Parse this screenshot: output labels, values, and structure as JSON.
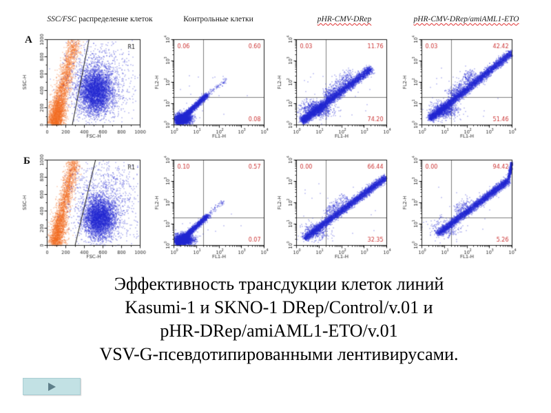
{
  "slide": {
    "column_headers": [
      {
        "em": "SSC/FSC",
        "rest": " распределение клеток",
        "misspell_underline": false
      },
      {
        "em": "",
        "rest": "Контрольные клетки",
        "misspell_underline": false
      },
      {
        "em": "pHR-CMV-DRep",
        "rest": "",
        "misspell_underline": true
      },
      {
        "em": "pHR-CMV-DRep/amiAML1-ETO",
        "rest": "",
        "misspell_underline": true
      }
    ],
    "row_labels": [
      "А",
      "Б"
    ],
    "caption_lines": [
      "Эффективность трансдукции клеток линий",
      "Kasumi-1 и SKNO-1 DRep/Control/v.01 и",
      "pHR-DRep/amiAML1-ETO/v.01",
      "VSV-G-псевдотипированными лентивирусами."
    ],
    "nav_button": {
      "action": "next-slide",
      "fill": "#c2e1e4",
      "arrow_color": "#5e7f8a"
    },
    "colors": {
      "points_blue": "#2428d2",
      "points_orange": "#f26c22",
      "quadrant_stat_red": "#cc3333",
      "quadrant_line_gray": "#7d7d7d",
      "axis_black": "#1a1a1a"
    }
  },
  "chart_data": [
    {
      "id": "A1",
      "row": "А",
      "column_title": "SSC/FSC распределение клеток",
      "type": "scatter",
      "scale": "linear",
      "xlabel": "FSC-H",
      "ylabel": "SSC-H",
      "xlim": [
        0,
        1000
      ],
      "ylim": [
        0,
        1000
      ],
      "ticks": [
        0,
        200,
        400,
        600,
        800,
        1000
      ],
      "gate": {
        "label": "R1",
        "line": [
          [
            270,
            0
          ],
          [
            450,
            1000
          ]
        ]
      },
      "clusters": [
        {
          "kind": "streak",
          "x0": 70,
          "y0": 20,
          "x1": 300,
          "y1": 1000,
          "spread": 38,
          "n": 2600,
          "bias": 1.6,
          "color": "#f26c22"
        },
        {
          "kind": "blob",
          "cx": 115,
          "cy": 150,
          "sx": 45,
          "sy": 100,
          "n": 700,
          "color": "#f26c22"
        },
        {
          "kind": "blob",
          "cx": 520,
          "cy": 390,
          "sx": 90,
          "sy": 130,
          "n": 3800,
          "color": "#2428d2"
        },
        {
          "kind": "blob",
          "cx": 545,
          "cy": 520,
          "sx": 165,
          "sy": 225,
          "n": 900,
          "color": "#2428d2"
        },
        {
          "kind": "uniform",
          "x0": 300,
          "y0": 60,
          "x1": 950,
          "y1": 980,
          "n": 130,
          "color": "#2428d2"
        }
      ]
    },
    {
      "id": "A2",
      "row": "А",
      "column_title": "Контрольные клетки",
      "type": "scatter",
      "scale": "log",
      "xlabel": "FL1-H",
      "ylabel": "FL2-H",
      "decades": [
        0,
        1,
        2,
        3,
        4
      ],
      "quadrant": {
        "x": 1.3,
        "y": 1.3,
        "stats": {
          "upper_left": "0.06",
          "upper_right": "0.60",
          "lower_right": "0.08"
        }
      },
      "clusters": [
        {
          "kind": "blob",
          "cx": 0.38,
          "cy": 0.3,
          "sx": 0.2,
          "sy": 0.13,
          "n": 2000,
          "color": "#2428d2"
        },
        {
          "kind": "streak",
          "x0": 0.15,
          "y0": 0.12,
          "x1": 1.45,
          "y1": 1.42,
          "spread": 0.06,
          "n": 2200,
          "bias": 1.5,
          "color": "#2428d2"
        },
        {
          "kind": "streak",
          "x0": 1.45,
          "y0": 1.42,
          "x1": 2.35,
          "y1": 2.15,
          "spread": 0.05,
          "n": 90,
          "bias": 1.2,
          "color": "#2428d2"
        },
        {
          "kind": "uniform",
          "x0": 0.2,
          "y0": 0.2,
          "x1": 3.3,
          "y1": 2.5,
          "n": 14,
          "color": "#2428d2"
        }
      ]
    },
    {
      "id": "A3",
      "row": "А",
      "column_title": "pHR-CMV-DRep",
      "type": "scatter",
      "scale": "log",
      "xlabel": "FL1-H",
      "ylabel": "FL2-H",
      "decades": [
        0,
        1,
        2,
        3,
        4
      ],
      "quadrant": {
        "x": 1.3,
        "y": 1.3,
        "stats": {
          "upper_left": "0.03",
          "upper_right": "11.76",
          "lower_right": "74.20"
        }
      },
      "clusters": [
        {
          "kind": "streak",
          "x0": 0.25,
          "y0": 0.2,
          "x1": 3.3,
          "y1": 2.65,
          "spread": 0.09,
          "n": 4200,
          "bias": 1.25,
          "color": "#2428d2"
        },
        {
          "kind": "blob",
          "cx": 0.9,
          "cy": 0.75,
          "sx": 0.35,
          "sy": 0.2,
          "n": 900,
          "color": "#2428d2"
        },
        {
          "kind": "streak",
          "x0": 1.35,
          "y0": 1.35,
          "x1": 2.4,
          "y1": 2.45,
          "spread": 0.16,
          "n": 420,
          "bias": 1.4,
          "color": "#2428d2"
        },
        {
          "kind": "uniform",
          "x0": 0.2,
          "y0": 0.2,
          "x1": 3.3,
          "y1": 2.8,
          "n": 25,
          "color": "#2428d2"
        }
      ]
    },
    {
      "id": "A4",
      "row": "А",
      "column_title": "pHR-CMV-DRep/amiAML1-ETO",
      "type": "scatter",
      "scale": "log",
      "xlabel": "FL1-H",
      "ylabel": "FL2-H",
      "decades": [
        0,
        1,
        2,
        3,
        4
      ],
      "quadrant": {
        "x": 1.3,
        "y": 1.3,
        "stats": {
          "upper_left": "0.03",
          "upper_right": "42.42",
          "lower_right": "51.46"
        }
      },
      "clusters": [
        {
          "kind": "streak",
          "x0": 0.35,
          "y0": 0.3,
          "x1": 3.98,
          "y1": 3.4,
          "spread": 0.085,
          "n": 4600,
          "bias": 1.15,
          "color": "#2428d2"
        },
        {
          "kind": "blob",
          "cx": 0.95,
          "cy": 0.7,
          "sx": 0.3,
          "sy": 0.18,
          "n": 700,
          "color": "#2428d2"
        },
        {
          "kind": "streak",
          "x0": 1.3,
          "y0": 1.4,
          "x1": 2.3,
          "y1": 2.5,
          "spread": 0.15,
          "n": 380,
          "bias": 1.4,
          "color": "#2428d2"
        },
        {
          "kind": "uniform",
          "x0": 0.3,
          "y0": 0.3,
          "x1": 3.6,
          "y1": 3.0,
          "n": 20,
          "color": "#2428d2"
        }
      ]
    },
    {
      "id": "B1",
      "row": "Б",
      "column_title": "SSC/FSC распределение клеток",
      "type": "scatter",
      "scale": "linear",
      "xlabel": "FSC-H",
      "ylabel": "SSC-H",
      "xlim": [
        0,
        1000
      ],
      "ylim": [
        0,
        1000
      ],
      "ticks": [
        0,
        200,
        400,
        600,
        800,
        1000
      ],
      "gate": {
        "label": "R1",
        "line": [
          [
            300,
            0
          ],
          [
            520,
            1000
          ]
        ]
      },
      "clusters": [
        {
          "kind": "streak",
          "x0": 80,
          "y0": 20,
          "x1": 290,
          "y1": 1000,
          "spread": 35,
          "n": 2400,
          "bias": 1.3,
          "color": "#f26c22"
        },
        {
          "kind": "blob",
          "cx": 125,
          "cy": 170,
          "sx": 48,
          "sy": 110,
          "n": 520,
          "color": "#f26c22"
        },
        {
          "kind": "blob",
          "cx": 560,
          "cy": 320,
          "sx": 85,
          "sy": 115,
          "n": 3600,
          "color": "#2428d2"
        },
        {
          "kind": "blob",
          "cx": 590,
          "cy": 520,
          "sx": 160,
          "sy": 230,
          "n": 1000,
          "color": "#2428d2"
        },
        {
          "kind": "uniform",
          "x0": 320,
          "y0": 60,
          "x1": 980,
          "y1": 990,
          "n": 140,
          "color": "#2428d2"
        }
      ]
    },
    {
      "id": "B2",
      "row": "Б",
      "column_title": "Контрольные клетки",
      "type": "scatter",
      "scale": "log",
      "xlabel": "FL1-H",
      "ylabel": "FL2-H",
      "decades": [
        0,
        1,
        2,
        3,
        4
      ],
      "quadrant": {
        "x": 1.3,
        "y": 1.3,
        "stats": {
          "upper_left": "0.10",
          "upper_right": "0.57",
          "lower_right": "0.07"
        }
      },
      "clusters": [
        {
          "kind": "blob",
          "cx": 0.4,
          "cy": 0.28,
          "sx": 0.22,
          "sy": 0.13,
          "n": 2200,
          "color": "#2428d2"
        },
        {
          "kind": "streak",
          "x0": 0.15,
          "y0": 0.1,
          "x1": 1.5,
          "y1": 1.42,
          "spread": 0.06,
          "n": 2300,
          "bias": 1.5,
          "color": "#2428d2"
        },
        {
          "kind": "streak",
          "x0": 1.5,
          "y0": 1.42,
          "x1": 2.2,
          "y1": 2.1,
          "spread": 0.05,
          "n": 70,
          "bias": 1.2,
          "color": "#2428d2"
        },
        {
          "kind": "uniform",
          "x0": 0.2,
          "y0": 0.2,
          "x1": 3.0,
          "y1": 2.3,
          "n": 10,
          "color": "#2428d2"
        }
      ]
    },
    {
      "id": "B3",
      "row": "Б",
      "column_title": "pHR-CMV-DRep",
      "type": "scatter",
      "scale": "log",
      "xlabel": "FL1-H",
      "ylabel": "FL2-H",
      "decades": [
        0,
        1,
        2,
        3,
        4
      ],
      "quadrant": {
        "x": 1.3,
        "y": 1.3,
        "stats": {
          "upper_left": "0.00",
          "upper_right": "66.44",
          "lower_right": "32.35"
        }
      },
      "clusters": [
        {
          "kind": "streak",
          "x0": 0.35,
          "y0": 0.35,
          "x1": 3.95,
          "y1": 3.2,
          "spread": 0.08,
          "n": 4300,
          "bias": 1.0,
          "color": "#2428d2"
        },
        {
          "kind": "blob",
          "cx": 0.8,
          "cy": 0.65,
          "sx": 0.3,
          "sy": 0.2,
          "n": 350,
          "color": "#2428d2"
        },
        {
          "kind": "streak",
          "x0": 1.4,
          "y0": 1.5,
          "x1": 2.2,
          "y1": 2.3,
          "spread": 0.13,
          "n": 220,
          "bias": 1.3,
          "color": "#2428d2"
        },
        {
          "kind": "uniform",
          "x0": 0.3,
          "y0": 0.3,
          "x1": 3.5,
          "y1": 2.9,
          "n": 18,
          "color": "#2428d2"
        }
      ]
    },
    {
      "id": "B4",
      "row": "Б",
      "column_title": "pHR-CMV-DRep/amiAML1-ETO",
      "type": "scatter",
      "scale": "log",
      "xlabel": "FL1-H",
      "ylabel": "FL2-H",
      "decades": [
        0,
        1,
        2,
        3,
        4
      ],
      "quadrant": {
        "x": 1.3,
        "y": 1.3,
        "stats": {
          "upper_left": "0.00",
          "upper_right": "94.42",
          "lower_right": "5.26"
        }
      },
      "clusters": [
        {
          "kind": "streak",
          "x0": 0.7,
          "y0": 0.55,
          "x1": 3.8,
          "y1": 3.05,
          "spread": 0.08,
          "n": 3800,
          "bias": 0.95,
          "color": "#2428d2"
        },
        {
          "kind": "streak",
          "x0": 3.8,
          "y0": 3.05,
          "x1": 3.99,
          "y1": 3.9,
          "spread": 0.035,
          "n": 500,
          "bias": 0.8,
          "color": "#2428d2"
        },
        {
          "kind": "blob",
          "cx": 1.0,
          "cy": 0.8,
          "sx": 0.35,
          "sy": 0.25,
          "n": 260,
          "color": "#2428d2"
        },
        {
          "kind": "streak",
          "x0": 1.5,
          "y0": 1.6,
          "x1": 2.1,
          "y1": 2.2,
          "spread": 0.12,
          "n": 120,
          "bias": 1.2,
          "color": "#2428d2"
        },
        {
          "kind": "uniform",
          "x0": 0.5,
          "y0": 0.4,
          "x1": 3.4,
          "y1": 2.8,
          "n": 12,
          "color": "#2428d2"
        }
      ]
    }
  ]
}
